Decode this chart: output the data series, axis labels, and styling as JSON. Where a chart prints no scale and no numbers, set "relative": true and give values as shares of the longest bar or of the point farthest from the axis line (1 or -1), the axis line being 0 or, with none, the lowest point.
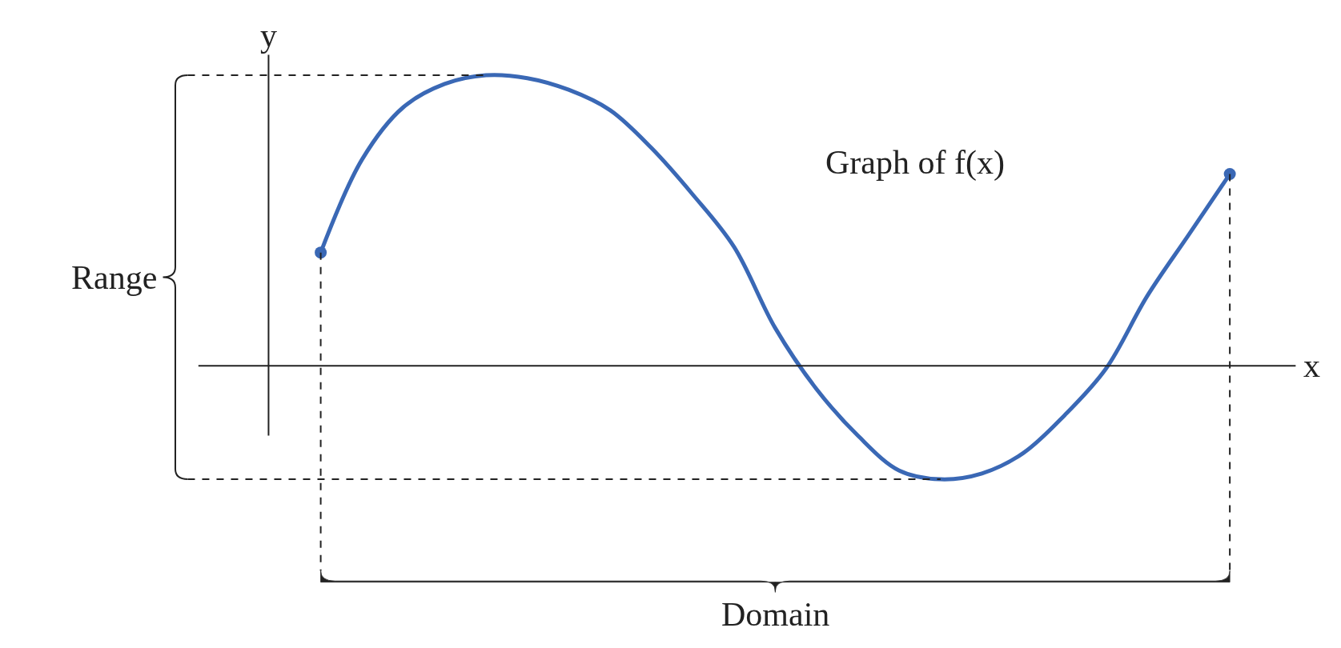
{
  "chart_data": {
    "type": "line",
    "relative": true,
    "xlabel": "x",
    "ylabel": "y",
    "categories": [
      null,
      null,
      null,
      null,
      null,
      null,
      null,
      null,
      null,
      null,
      null,
      null,
      null,
      null,
      null,
      null,
      null,
      null,
      null,
      null,
      null,
      null,
      null
    ],
    "series": [
      {
        "color": "#3a68b5",
        "values": [
          0.39,
          0.71,
          0.89,
          0.97,
          1.0,
          0.99,
          0.95,
          0.88,
          0.75,
          0.59,
          0.41,
          0.13,
          -0.08,
          -0.24,
          -0.36,
          -0.39,
          -0.37,
          -0.3,
          -0.17,
          -0.01,
          0.24,
          0.45,
          0.66
        ]
      }
    ],
    "bands": [
      {
        "axis": "y",
        "from": -0.39,
        "to": 1.0,
        "label": "Range"
      }
    ],
    "annotations": [
      "Graph of f(x)",
      "Domain"
    ],
    "legend": false
  }
}
